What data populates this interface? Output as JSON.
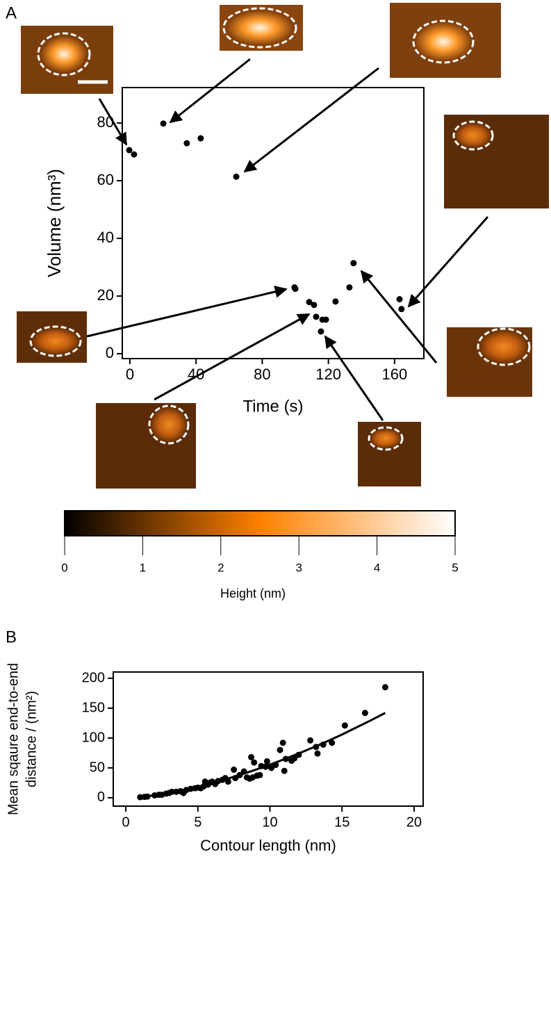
{
  "chart_data": [
    {
      "type": "scatter",
      "panel": "A",
      "x_label": "Time (s)",
      "y_label": "Volume (nm³)",
      "xlim": [
        -4.6,
        177.7
      ],
      "ylim": [
        -1.7,
        92.3
      ],
      "xticks": [
        0,
        40,
        80,
        120,
        160
      ],
      "yticks": [
        0,
        20,
        40,
        60,
        80
      ],
      "series": [
        {
          "color": "#000000",
          "mode": "markers",
          "x": [
            -0.4,
            2.5,
            20.2,
            34.4,
            42.8,
            64.3,
            99.5,
            100,
            108.4,
            111.3,
            112.6,
            115.5,
            116.4,
            118.5,
            124.3,
            132.7,
            135.2,
            163,
            164.2
          ],
          "values": [
            70.6,
            69.1,
            79.8,
            73.0,
            74.7,
            61.4,
            23.0,
            22.5,
            17.9,
            16.9,
            12.8,
            7.7,
            11.8,
            11.8,
            18.1,
            23.0,
            31.4,
            18.9,
            15.5
          ]
        }
      ]
    },
    {
      "type": "colorbar",
      "x_label": "Height (nm)",
      "xlim": [
        0,
        5
      ],
      "xticks": [
        0,
        1,
        2,
        3,
        4,
        5
      ],
      "colors": [
        "#000000",
        "#ff8000",
        "#ffffff"
      ]
    },
    {
      "type": "scatter",
      "panel": "B",
      "x_label": "Contour length (nm)",
      "y_label": [
        "Mean sqaure end-to-end",
        "distance / (nm²)"
      ],
      "xlim": [
        -0.87,
        20.63
      ],
      "ylim": [
        -14,
        210.5
      ],
      "xticks": [
        0,
        5,
        10,
        15,
        20
      ],
      "yticks": [
        0,
        50,
        100,
        150,
        200
      ],
      "series": [
        {
          "color": "#000000",
          "mode": "markers",
          "x": [
            1,
            1.3,
            1.5,
            2,
            2.3,
            2.5,
            2.8,
            3,
            3.2,
            3.5,
            3.8,
            4,
            4.2,
            4.5,
            4.8,
            5,
            5.2,
            5.4,
            5.5,
            5.7,
            5.9,
            6,
            6.2,
            6.4,
            6.7,
            6.9,
            7.1,
            7.5,
            7.6,
            7.9,
            8.2,
            8.4,
            8.6,
            8.7,
            8.8,
            8.9,
            9.1,
            9.3,
            9.4,
            9.7,
            9.8,
            10.1,
            10.4,
            10.7,
            10.9,
            11,
            11.1,
            11.5,
            11.7,
            12,
            12.8,
            13.2,
            13.3,
            13.7,
            14.3,
            15.2,
            16.6,
            18
          ],
          "values": [
            1,
            1.5,
            2,
            4,
            5,
            5,
            7,
            8,
            10,
            10,
            11,
            8,
            13,
            15,
            16,
            17,
            16,
            19,
            27,
            22,
            26,
            27,
            23,
            28,
            30,
            33,
            27,
            47,
            33,
            38,
            44,
            34,
            32,
            68,
            34,
            59,
            37,
            38,
            53,
            52,
            61,
            50,
            55,
            80,
            92,
            45,
            65,
            62,
            66,
            72,
            96,
            85,
            74,
            89,
            92,
            121,
            142,
            185
          ]
        },
        {
          "color": "#000000",
          "mode": "line",
          "x": [
            1,
            2,
            3,
            4,
            5,
            6,
            7,
            8,
            9,
            10,
            11,
            12,
            13,
            14,
            15,
            16,
            17,
            18
          ],
          "values": [
            1.4,
            4.2,
            8.1,
            12.8,
            18.3,
            24.5,
            31.4,
            38.8,
            46.9,
            55.5,
            64.6,
            74.2,
            84.3,
            94.8,
            105.8,
            117.7,
            129.6,
            142.0
          ]
        }
      ]
    }
  ]
}
